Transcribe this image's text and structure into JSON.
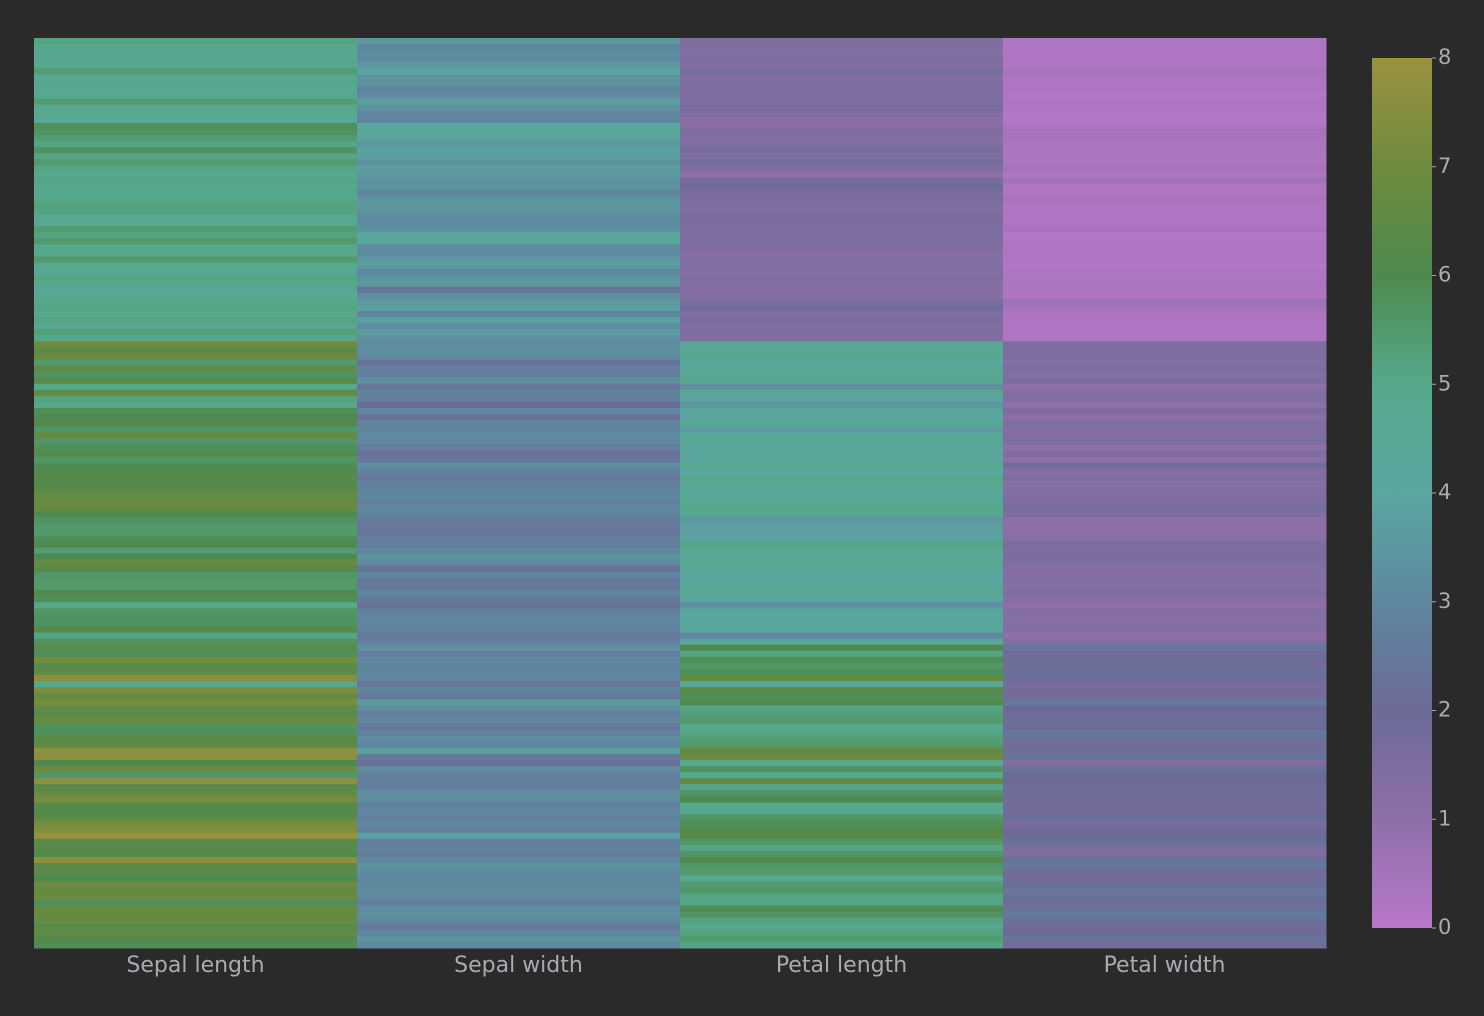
{
  "chart_data": {
    "type": "heatmap",
    "categories": [
      "Sepal length",
      "Sepal width",
      "Petal length",
      "Petal width"
    ],
    "zlim": [
      0,
      8
    ],
    "colorbar_ticks": [
      0,
      1,
      2,
      3,
      4,
      5,
      6,
      7,
      8
    ],
    "colorscale": [
      "#b877c9",
      "#8e6fa8",
      "#6c6b98",
      "#5f879f",
      "#5aa6a0",
      "#55a88a",
      "#4e8a4e",
      "#6f8b3e",
      "#9a923e"
    ],
    "z": [
      [
        5.1,
        3.5,
        1.4,
        0.2
      ],
      [
        4.9,
        3.0,
        1.4,
        0.2
      ],
      [
        4.7,
        3.2,
        1.3,
        0.2
      ],
      [
        4.6,
        3.1,
        1.5,
        0.2
      ],
      [
        5.0,
        3.6,
        1.4,
        0.2
      ],
      [
        5.4,
        3.9,
        1.7,
        0.4
      ],
      [
        4.6,
        3.4,
        1.4,
        0.3
      ],
      [
        5.0,
        3.4,
        1.5,
        0.2
      ],
      [
        4.4,
        2.9,
        1.4,
        0.2
      ],
      [
        4.9,
        3.1,
        1.5,
        0.1
      ],
      [
        5.4,
        3.7,
        1.5,
        0.2
      ],
      [
        4.8,
        3.4,
        1.6,
        0.2
      ],
      [
        4.8,
        3.0,
        1.4,
        0.1
      ],
      [
        4.3,
        3.0,
        1.1,
        0.1
      ],
      [
        5.8,
        4.0,
        1.2,
        0.2
      ],
      [
        5.7,
        4.4,
        1.5,
        0.4
      ],
      [
        5.4,
        3.9,
        1.3,
        0.4
      ],
      [
        5.1,
        3.5,
        1.4,
        0.3
      ],
      [
        5.7,
        3.8,
        1.7,
        0.3
      ],
      [
        5.1,
        3.8,
        1.5,
        0.3
      ],
      [
        5.4,
        3.4,
        1.7,
        0.2
      ],
      [
        5.1,
        3.7,
        1.5,
        0.4
      ],
      [
        4.6,
        3.6,
        1.0,
        0.2
      ],
      [
        5.1,
        3.3,
        1.7,
        0.5
      ],
      [
        4.8,
        3.4,
        1.9,
        0.2
      ],
      [
        5.0,
        3.0,
        1.6,
        0.2
      ],
      [
        5.0,
        3.4,
        1.6,
        0.4
      ],
      [
        5.2,
        3.5,
        1.5,
        0.2
      ],
      [
        5.2,
        3.4,
        1.4,
        0.2
      ],
      [
        4.7,
        3.2,
        1.6,
        0.2
      ],
      [
        4.8,
        3.1,
        1.6,
        0.2
      ],
      [
        5.4,
        3.4,
        1.5,
        0.4
      ],
      [
        5.2,
        4.1,
        1.5,
        0.1
      ],
      [
        5.5,
        4.2,
        1.4,
        0.2
      ],
      [
        4.9,
        3.1,
        1.5,
        0.2
      ],
      [
        5.0,
        3.2,
        1.2,
        0.2
      ],
      [
        5.5,
        3.5,
        1.3,
        0.2
      ],
      [
        4.9,
        3.6,
        1.4,
        0.1
      ],
      [
        4.4,
        3.0,
        1.3,
        0.2
      ],
      [
        5.1,
        3.4,
        1.5,
        0.2
      ],
      [
        5.0,
        3.5,
        1.3,
        0.3
      ],
      [
        4.5,
        2.3,
        1.3,
        0.3
      ],
      [
        4.4,
        3.2,
        1.3,
        0.2
      ],
      [
        5.0,
        3.5,
        1.6,
        0.6
      ],
      [
        5.1,
        3.8,
        1.9,
        0.4
      ],
      [
        4.8,
        3.0,
        1.4,
        0.3
      ],
      [
        5.1,
        3.8,
        1.6,
        0.2
      ],
      [
        4.6,
        3.2,
        1.4,
        0.2
      ],
      [
        5.3,
        3.7,
        1.5,
        0.2
      ],
      [
        5.0,
        3.3,
        1.4,
        0.2
      ],
      [
        7.0,
        3.2,
        4.7,
        1.4
      ],
      [
        6.4,
        3.2,
        4.5,
        1.5
      ],
      [
        6.9,
        3.1,
        4.9,
        1.5
      ],
      [
        5.5,
        2.3,
        4.0,
        1.3
      ],
      [
        6.5,
        2.8,
        4.6,
        1.5
      ],
      [
        5.7,
        2.8,
        4.5,
        1.3
      ],
      [
        6.3,
        3.3,
        4.7,
        1.6
      ],
      [
        4.9,
        2.4,
        3.3,
        1.0
      ],
      [
        6.6,
        2.9,
        4.6,
        1.3
      ],
      [
        5.2,
        2.7,
        3.9,
        1.4
      ],
      [
        5.0,
        2.0,
        3.5,
        1.0
      ],
      [
        5.9,
        3.0,
        4.2,
        1.5
      ],
      [
        6.0,
        2.2,
        4.0,
        1.0
      ],
      [
        6.1,
        2.9,
        4.7,
        1.4
      ],
      [
        5.6,
        2.9,
        3.6,
        1.3
      ],
      [
        6.7,
        3.1,
        4.4,
        1.4
      ],
      [
        5.6,
        3.0,
        4.5,
        1.5
      ],
      [
        5.8,
        2.7,
        4.1,
        1.0
      ],
      [
        6.2,
        2.2,
        4.5,
        1.5
      ],
      [
        5.6,
        2.5,
        3.9,
        1.1
      ],
      [
        5.9,
        3.2,
        4.8,
        1.8
      ],
      [
        6.1,
        2.8,
        4.0,
        1.3
      ],
      [
        6.3,
        2.5,
        4.9,
        1.5
      ],
      [
        6.1,
        2.8,
        4.7,
        1.2
      ],
      [
        6.4,
        2.9,
        4.3,
        1.3
      ],
      [
        6.6,
        3.0,
        4.4,
        1.4
      ],
      [
        6.8,
        2.8,
        4.8,
        1.4
      ],
      [
        6.7,
        3.0,
        5.0,
        1.7
      ],
      [
        6.0,
        2.9,
        4.5,
        1.5
      ],
      [
        5.7,
        2.6,
        3.5,
        1.0
      ],
      [
        5.5,
        2.4,
        3.8,
        1.1
      ],
      [
        5.5,
        2.4,
        3.7,
        1.0
      ],
      [
        5.8,
        2.7,
        3.9,
        1.2
      ],
      [
        6.0,
        2.7,
        5.1,
        1.6
      ],
      [
        5.4,
        3.0,
        4.5,
        1.5
      ],
      [
        6.0,
        3.4,
        4.5,
        1.6
      ],
      [
        6.7,
        3.1,
        4.7,
        1.5
      ],
      [
        6.3,
        2.3,
        4.4,
        1.3
      ],
      [
        5.6,
        3.0,
        4.1,
        1.3
      ],
      [
        5.5,
        2.5,
        4.0,
        1.3
      ],
      [
        5.5,
        2.6,
        4.4,
        1.2
      ],
      [
        6.1,
        3.0,
        4.6,
        1.4
      ],
      [
        5.8,
        2.6,
        4.0,
        1.2
      ],
      [
        5.0,
        2.3,
        3.3,
        1.0
      ],
      [
        5.6,
        2.7,
        4.2,
        1.3
      ],
      [
        5.7,
        3.0,
        4.2,
        1.2
      ],
      [
        5.7,
        2.9,
        4.2,
        1.3
      ],
      [
        6.2,
        2.9,
        4.3,
        1.3
      ],
      [
        5.1,
        2.5,
        3.0,
        1.1
      ],
      [
        5.7,
        2.8,
        4.1,
        1.3
      ],
      [
        6.3,
        3.3,
        6.0,
        2.5
      ],
      [
        5.8,
        2.7,
        5.1,
        1.9
      ],
      [
        7.1,
        3.0,
        5.9,
        2.1
      ],
      [
        6.3,
        2.9,
        5.6,
        1.8
      ],
      [
        6.5,
        3.0,
        5.8,
        2.2
      ],
      [
        7.6,
        3.0,
        6.6,
        2.1
      ],
      [
        4.9,
        2.5,
        4.5,
        1.7
      ],
      [
        7.3,
        2.9,
        6.3,
        1.8
      ],
      [
        6.7,
        2.5,
        5.8,
        1.8
      ],
      [
        7.2,
        3.6,
        6.1,
        2.5
      ],
      [
        6.5,
        3.2,
        5.1,
        2.0
      ],
      [
        6.4,
        2.7,
        5.3,
        1.9
      ],
      [
        6.8,
        3.0,
        5.5,
        2.1
      ],
      [
        5.7,
        2.5,
        5.0,
        2.0
      ],
      [
        5.8,
        2.8,
        5.1,
        2.4
      ],
      [
        6.4,
        3.2,
        5.3,
        2.3
      ],
      [
        6.5,
        3.0,
        5.5,
        1.8
      ],
      [
        7.7,
        3.8,
        6.7,
        2.2
      ],
      [
        7.7,
        2.6,
        6.9,
        2.3
      ],
      [
        6.0,
        2.2,
        5.0,
        1.5
      ],
      [
        6.9,
        3.2,
        5.7,
        2.3
      ],
      [
        5.6,
        2.8,
        4.9,
        2.0
      ],
      [
        7.7,
        2.8,
        6.7,
        2.0
      ],
      [
        6.3,
        2.7,
        4.9,
        1.8
      ],
      [
        6.7,
        3.3,
        5.7,
        2.1
      ],
      [
        7.2,
        3.2,
        6.0,
        1.8
      ],
      [
        6.2,
        2.8,
        4.8,
        1.8
      ],
      [
        6.1,
        3.0,
        4.9,
        1.8
      ],
      [
        6.4,
        2.8,
        5.6,
        2.1
      ],
      [
        7.2,
        3.0,
        5.8,
        1.6
      ],
      [
        7.4,
        2.8,
        6.1,
        1.9
      ],
      [
        7.9,
        3.8,
        6.4,
        2.0
      ],
      [
        6.4,
        2.8,
        5.6,
        2.2
      ],
      [
        6.3,
        2.8,
        5.1,
        1.5
      ],
      [
        6.1,
        2.6,
        5.6,
        1.4
      ],
      [
        7.7,
        3.0,
        6.1,
        2.3
      ],
      [
        6.3,
        3.4,
        5.6,
        2.4
      ],
      [
        6.4,
        3.1,
        5.5,
        1.8
      ],
      [
        6.0,
        3.0,
        4.8,
        1.8
      ],
      [
        6.9,
        3.1,
        5.4,
        2.1
      ],
      [
        6.7,
        3.1,
        5.6,
        2.4
      ],
      [
        6.9,
        3.1,
        5.1,
        2.3
      ],
      [
        5.8,
        2.7,
        5.1,
        1.9
      ],
      [
        6.8,
        3.2,
        5.9,
        2.3
      ],
      [
        6.7,
        3.3,
        5.7,
        2.5
      ],
      [
        6.7,
        3.0,
        5.2,
        2.3
      ],
      [
        6.3,
        2.5,
        5.0,
        1.9
      ],
      [
        6.5,
        3.0,
        5.2,
        2.0
      ],
      [
        6.2,
        3.4,
        5.4,
        2.3
      ],
      [
        5.9,
        3.0,
        5.1,
        1.8
      ]
    ]
  }
}
